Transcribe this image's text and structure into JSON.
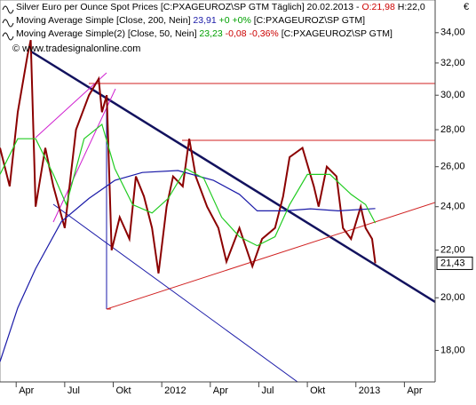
{
  "chart_data": {
    "type": "line",
    "log_y": true,
    "currency": "€",
    "watermark": "© www.tradesignalonline.com",
    "header": [
      {
        "parts": [
          {
            "text": "Silver Euro per Ounce Spot Prices [C:PXAGEUROZ\\SP GTM  Täglich] 20.02.2013 -",
            "color": "#000000"
          },
          {
            "text": "O:21,98",
            "color": "#cc0000"
          },
          {
            "text": "H:22,0",
            "color": "#000000"
          }
        ]
      },
      {
        "parts": [
          {
            "text": "Moving Average Simple [Close, 200, Nein]",
            "color": "#000000"
          },
          {
            "text": "23,91",
            "color": "#1a1aa8"
          },
          {
            "text": "+0",
            "color": "#00a000"
          },
          {
            "text": "+0%",
            "color": "#00a000"
          },
          {
            "text": "[C:PXAGEUROZ\\SP GTM]",
            "color": "#000000"
          }
        ]
      },
      {
        "parts": [
          {
            "text": "Moving Average Simple(2) [Close, 50, Nein]",
            "color": "#000000"
          },
          {
            "text": "23,23",
            "color": "#00a000"
          },
          {
            "text": "-0,08",
            "color": "#cc0000"
          },
          {
            "text": "-0,36%",
            "color": "#cc0000"
          },
          {
            "text": "[C:PXAGEUROZ\\SP GTM]",
            "color": "#000000"
          }
        ]
      }
    ],
    "xlim": [
      2.0,
      28.9
    ],
    "xticks": [
      {
        "value": 3,
        "label": "Apr"
      },
      {
        "value": 6,
        "label": "Jul"
      },
      {
        "value": 9,
        "label": "Okt"
      },
      {
        "value": 12,
        "label": "2012"
      },
      {
        "value": 15,
        "label": "Apr"
      },
      {
        "value": 18,
        "label": "Jul"
      },
      {
        "value": 21,
        "label": "Okt"
      },
      {
        "value": 24,
        "label": "2013"
      },
      {
        "value": 27,
        "label": "Apr"
      }
    ],
    "ylim": [
      16.9,
      36.3
    ],
    "yticks": [
      {
        "value": 18,
        "label": "18,00"
      },
      {
        "value": 20,
        "label": "20,00"
      },
      {
        "value": 22,
        "label": "22,00"
      },
      {
        "value": 24,
        "label": "24,00"
      },
      {
        "value": 26,
        "label": "26,00"
      },
      {
        "value": 28,
        "label": "28,00"
      },
      {
        "value": 30,
        "label": "30,00"
      },
      {
        "value": 32,
        "label": "32,00"
      },
      {
        "value": 34,
        "label": "34,00"
      }
    ],
    "last_price": {
      "value": 21.43,
      "label": "21,43"
    },
    "series": [
      {
        "name": "Silver Euro per Ounce Spot Prices",
        "color": "#8b0000",
        "x": [
          2.0,
          2.6,
          3.1,
          3.7,
          3.9,
          4.2,
          4.8,
          5.3,
          6.0,
          6.7,
          7.5,
          8.1,
          8.3,
          8.6,
          8.9,
          9.4,
          10.0,
          10.4,
          10.9,
          11.4,
          11.8,
          12.3,
          12.7,
          13.3,
          13.7,
          14.1,
          14.8,
          15.5,
          16.0,
          16.8,
          17.6,
          18.2,
          19.0,
          19.5,
          19.9,
          20.7,
          21.4,
          21.7,
          22.2,
          22.8,
          23.2,
          23.7,
          24.3,
          24.6,
          25.0,
          25.2
        ],
        "values": [
          27.0,
          25.0,
          29.0,
          32.5,
          33.5,
          24.0,
          27.0,
          25.0,
          23.0,
          28.0,
          30.0,
          31.0,
          29.0,
          30.0,
          22.0,
          23.5,
          22.5,
          25.5,
          24.5,
          23.0,
          21.0,
          24.0,
          25.5,
          25.0,
          27.5,
          25.5,
          24.0,
          23.0,
          21.5,
          23.0,
          21.3,
          22.5,
          23.0,
          24.5,
          26.5,
          27.0,
          25.0,
          24.0,
          26.0,
          25.5,
          23.0,
          22.5,
          24.0,
          23.0,
          22.5,
          21.43
        ]
      },
      {
        "name": "Moving Average Simple",
        "color": "#1a1aa8",
        "x": [
          2.0,
          3.1,
          4.2,
          5.8,
          7.5,
          9.1,
          10.8,
          13.0,
          15.2,
          16.8,
          17.9,
          19.6,
          21.2,
          22.9,
          25.2
        ],
        "values": [
          17.6,
          19.6,
          21.2,
          23.3,
          24.4,
          25.3,
          25.7,
          25.8,
          25.3,
          24.6,
          23.8,
          23.8,
          23.9,
          23.8,
          23.91
        ]
      },
      {
        "name": "Moving Average Simple(2)",
        "color": "#22cc22",
        "x": [
          2.0,
          3.1,
          4.2,
          5.3,
          6.1,
          7.2,
          8.3,
          9.1,
          10.2,
          11.4,
          12.4,
          13.5,
          14.6,
          15.7,
          16.8,
          17.9,
          19.0,
          19.9,
          21.0,
          22.4,
          23.7,
          24.6,
          25.2
        ],
        "values": [
          25.6,
          27.5,
          27.5,
          25.6,
          24.1,
          27.5,
          28.3,
          25.9,
          24.1,
          23.7,
          24.4,
          25.9,
          25.4,
          23.5,
          22.6,
          22.2,
          22.6,
          24.1,
          25.6,
          25.6,
          24.6,
          24.1,
          23.23
        ]
      }
    ]
  }
}
